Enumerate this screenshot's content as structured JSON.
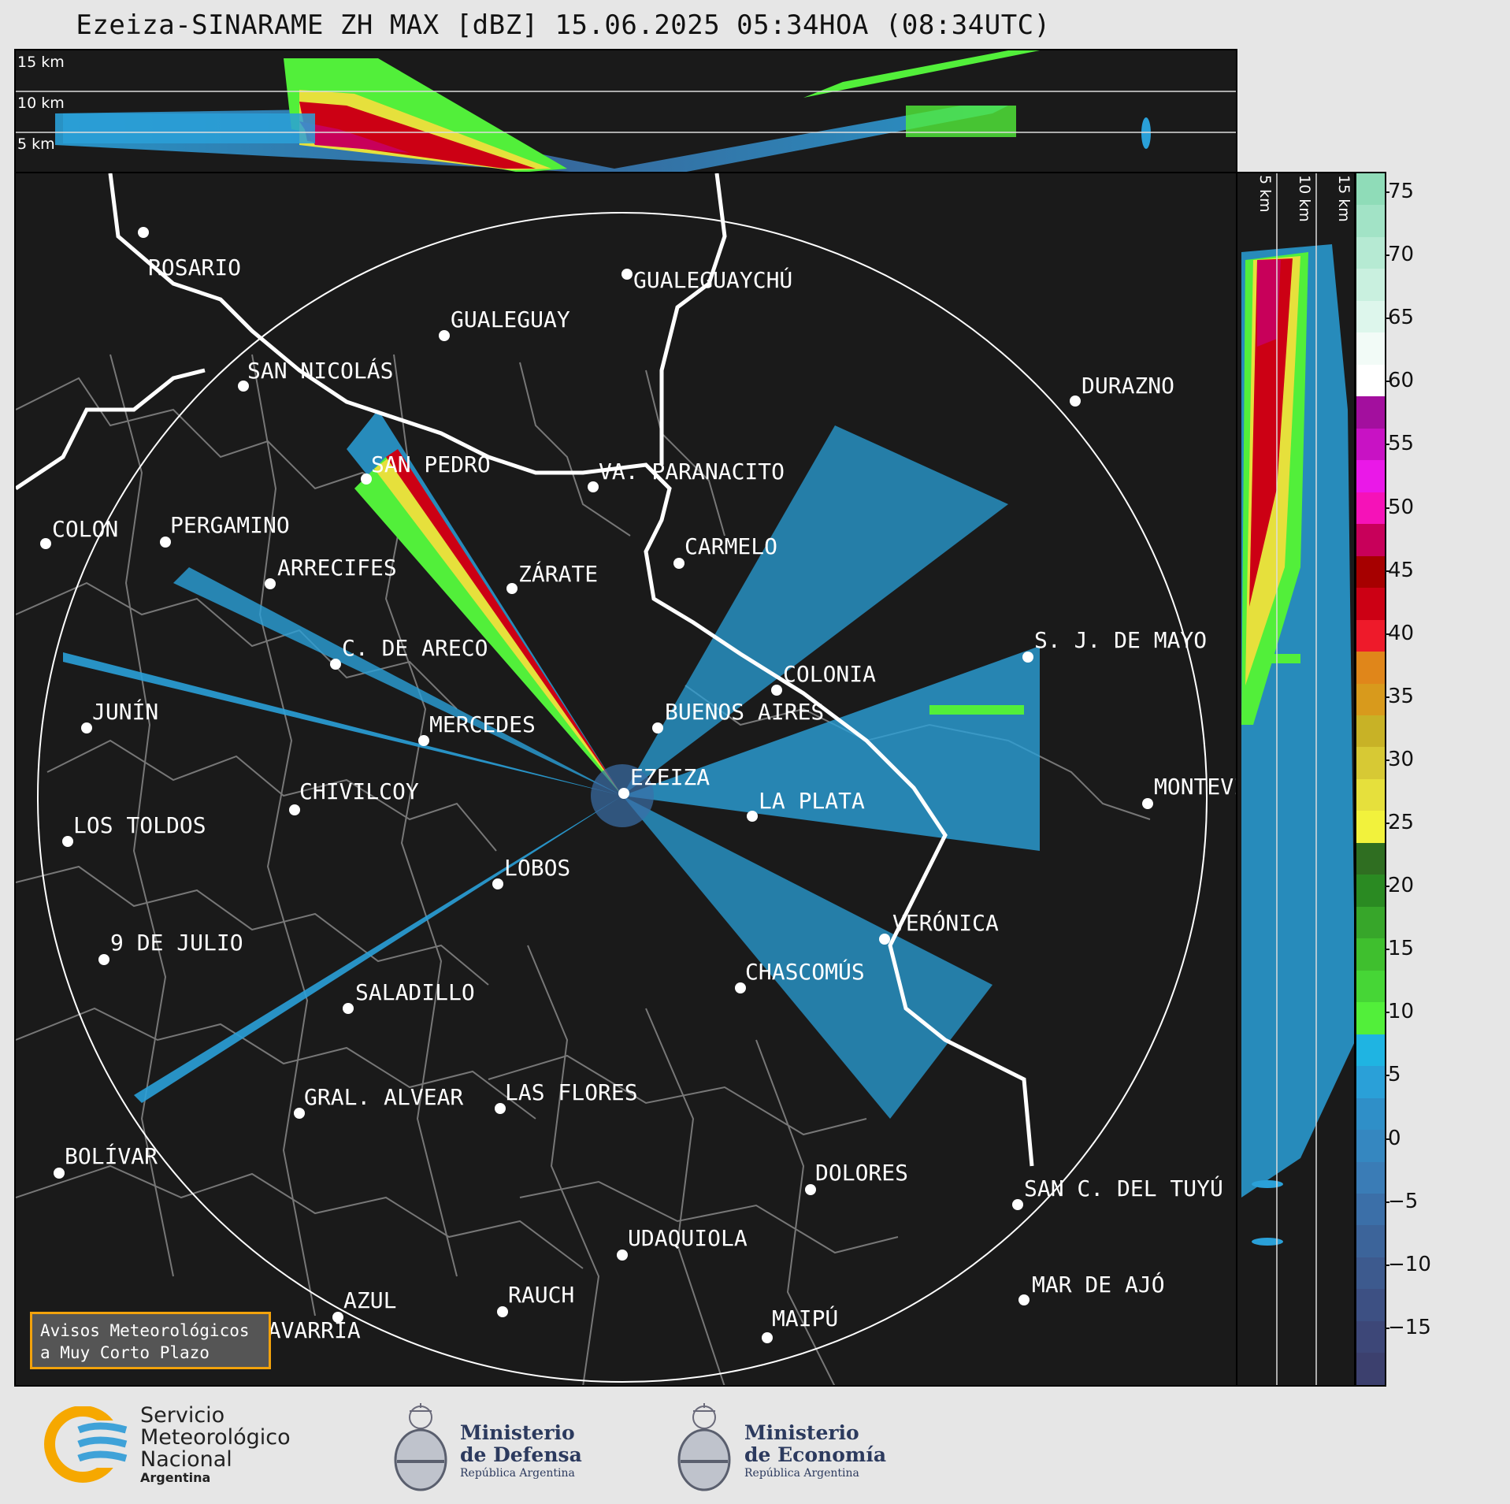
{
  "title": "Ezeiza-SINARAME ZH MAX [dBZ] 15.06.2025 05:34HOA (08:34UTC)",
  "top_panel_labels": [
    "15 km",
    "10 km",
    "5 km"
  ],
  "side_panel_labels": [
    "5 km",
    "10 km",
    "15 km"
  ],
  "colorbar": {
    "ticks": [
      "75",
      "70",
      "65",
      "60",
      "55",
      "50",
      "45",
      "40",
      "35",
      "30",
      "25",
      "20",
      "15",
      "10",
      "5",
      "0",
      "−5",
      "−10",
      "−15"
    ],
    "colors": [
      "#8fdcb8",
      "#a2e3c6",
      "#b6ead3",
      "#c9f0df",
      "#ddf6ec",
      "#f2fbf7",
      "#ffffff",
      "#a30f9e",
      "#c812c4",
      "#ea18e8",
      "#f512b8",
      "#c8005a",
      "#a60000",
      "#cc0014",
      "#ee1a2a",
      "#e0861a",
      "#d89a1c",
      "#c8b226",
      "#d7c934",
      "#e6e03c",
      "#f2f23c",
      "#2f6e21",
      "#2a8a22",
      "#37a62a",
      "#3fbf2e",
      "#46d636",
      "#52ef3a",
      "#1fb4e2",
      "#2aa0d8",
      "#2f8fc8",
      "#3587c0",
      "#3a7cb6",
      "#3b6fa8",
      "#3c649a",
      "#3d5a8e",
      "#3d5083",
      "#3d4778",
      "#3c406e"
    ]
  },
  "cities": [
    {
      "name": "ROSARIO"
    },
    {
      "name": "GUALEGUAYCHÚ"
    },
    {
      "name": "GUALEGUAY"
    },
    {
      "name": "SAN NICOLÁS"
    },
    {
      "name": "DURAZNO"
    },
    {
      "name": "SAN PEDRO"
    },
    {
      "name": "VA. PARANACITO"
    },
    {
      "name": "COLON"
    },
    {
      "name": "PERGAMINO"
    },
    {
      "name": "CARMELO"
    },
    {
      "name": "ARRECIFES"
    },
    {
      "name": "ZÁRATE"
    },
    {
      "name": "C. DE ARECO"
    },
    {
      "name": "S. J. DE MAYO"
    },
    {
      "name": "COLONIA"
    },
    {
      "name": "JUNÍN"
    },
    {
      "name": "BUENOS AIRES"
    },
    {
      "name": "MERCEDES"
    },
    {
      "name": "EZEIZA"
    },
    {
      "name": "MONTEVIDEO"
    },
    {
      "name": "CHIVILCOY"
    },
    {
      "name": "LA PLATA"
    },
    {
      "name": "LOS TOLDOS"
    },
    {
      "name": "LOBOS"
    },
    {
      "name": "VERÓNICA"
    },
    {
      "name": "9 DE JULIO"
    },
    {
      "name": "CHASCOMÚS"
    },
    {
      "name": "SALADILLO"
    },
    {
      "name": "GRAL. ALVEAR"
    },
    {
      "name": "LAS FLORES"
    },
    {
      "name": "BOLÍVAR"
    },
    {
      "name": "DOLORES"
    },
    {
      "name": "SAN C. DEL TUYÚ"
    },
    {
      "name": "UDAQUIOLA"
    },
    {
      "name": "MAR DE AJÓ"
    },
    {
      "name": "AZUL"
    },
    {
      "name": "RAUCH"
    },
    {
      "name": "OLAVARRÍA"
    },
    {
      "name": "MAIPÚ"
    }
  ],
  "warning_box": {
    "line1": "Avisos Meteorológicos",
    "line2": "a Muy Corto Plazo"
  },
  "logos": {
    "smn": {
      "line1": "Servicio",
      "line2": "Meteorológico",
      "line3": "Nacional",
      "line4": "Argentina"
    },
    "defensa": {
      "line1": "Ministerio",
      "line2": "de Defensa",
      "sub": "República Argentina"
    },
    "economia": {
      "line1": "Ministerio",
      "line2": "de Economía",
      "sub": "República Argentina"
    }
  }
}
